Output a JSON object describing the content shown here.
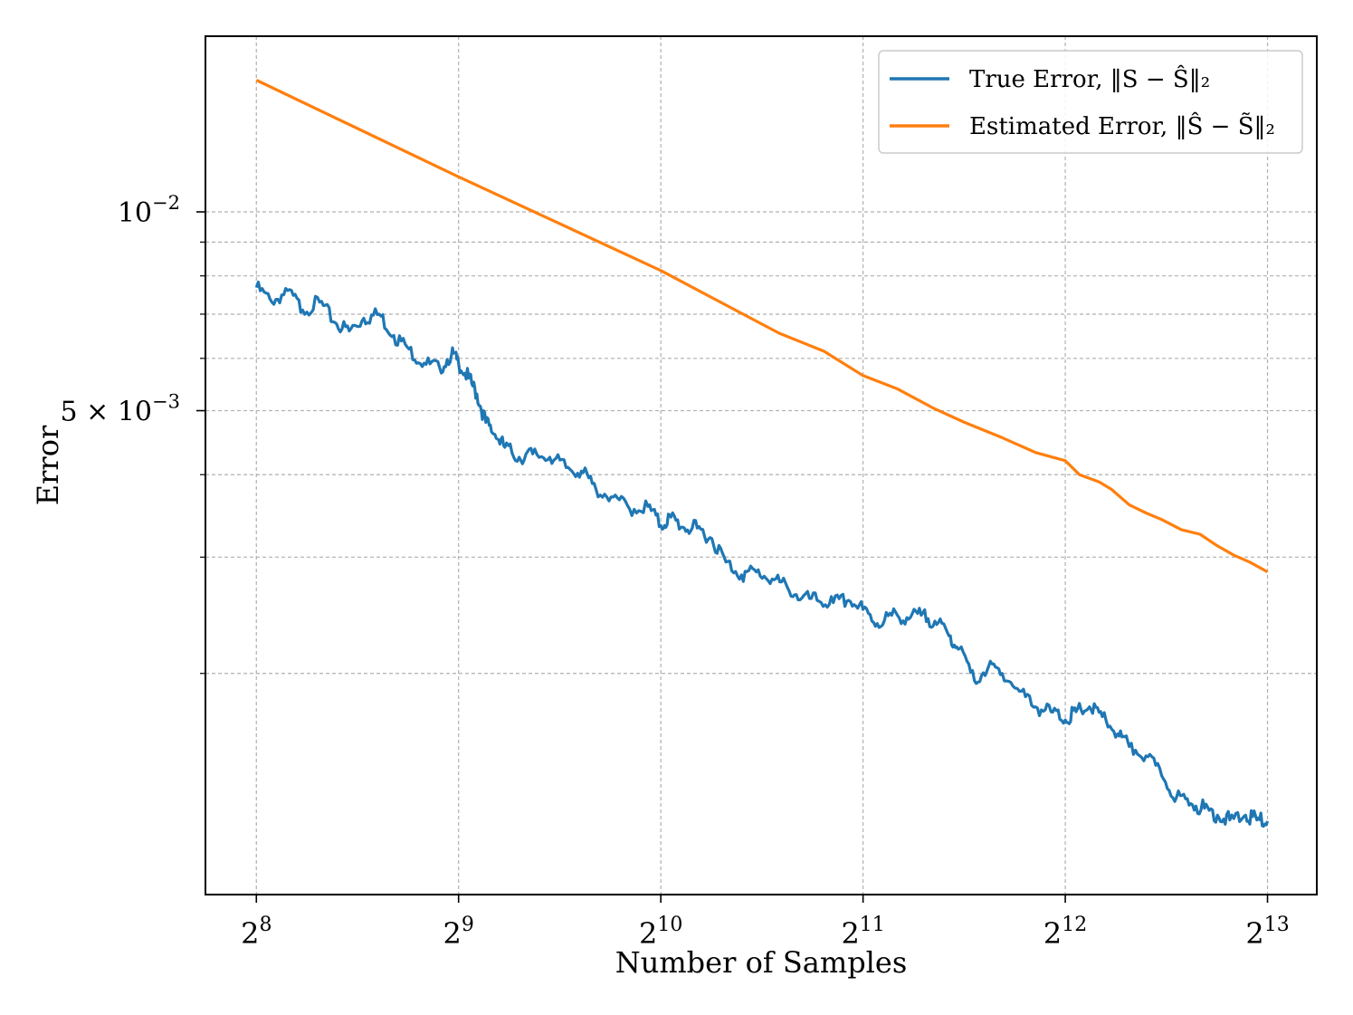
{
  "chart_data": {
    "type": "line",
    "title": "",
    "xlabel": "Number of Samples",
    "ylabel": "Error",
    "xscale": "log2",
    "yscale": "log10",
    "xlim": [
      215,
      9700
    ],
    "ylim": [
      0.000925,
      0.01845
    ],
    "grid": true,
    "x_ticks": [
      {
        "value": 256,
        "base": "2",
        "exp": "8"
      },
      {
        "value": 512,
        "base": "2",
        "exp": "9"
      },
      {
        "value": 1024,
        "base": "2",
        "exp": "10"
      },
      {
        "value": 2048,
        "base": "2",
        "exp": "11"
      },
      {
        "value": 4096,
        "base": "2",
        "exp": "12"
      },
      {
        "value": 8192,
        "base": "2",
        "exp": "13"
      }
    ],
    "y_major_ticks": [
      {
        "value": 0.01,
        "label": "10",
        "exp": "−2"
      },
      {
        "value": 0.005,
        "label": "5 × 10",
        "exp": "−3"
      }
    ],
    "y_minor_ticks": [
      0.002,
      0.003,
      0.004,
      0.006,
      0.007,
      0.008,
      0.009
    ],
    "legend": {
      "location": "top-right",
      "entries": [
        {
          "series": 0,
          "text": "True Error, ‖S − Ŝ‖₂"
        },
        {
          "series": 1,
          "text": "Estimated Error, ‖Ŝ − S̃‖₂"
        }
      ]
    },
    "series": [
      {
        "name": "True Error, ‖S − Ŝ‖₂",
        "color": "#1f77b4",
        "x": [
          256,
          270,
          285,
          300,
          318,
          335,
          352,
          370,
          390,
          410,
          432,
          455,
          480,
          500,
          512,
          530,
          545,
          562,
          580,
          600,
          630,
          660,
          700,
          740,
          780,
          820,
          870,
          920,
          980,
          1024,
          1060,
          1110,
          1160,
          1220,
          1280,
          1350,
          1420,
          1500,
          1580,
          1660,
          1750,
          1850,
          1950,
          2048,
          2150,
          2260,
          2380,
          2500,
          2620,
          2750,
          2850,
          3000,
          3150,
          3300,
          3500,
          3700,
          3900,
          4096,
          4250,
          4450,
          4650,
          4900,
          5100,
          5400,
          5700,
          6000,
          6300,
          6600,
          6900,
          7200,
          7600,
          7900,
          8192
        ],
        "values": [
          0.00768,
          0.0073,
          0.0076,
          0.0071,
          0.0073,
          0.0068,
          0.0066,
          0.0069,
          0.007,
          0.0065,
          0.0062,
          0.0059,
          0.0058,
          0.0061,
          0.0059,
          0.0056,
          0.0053,
          0.0048,
          0.0046,
          0.0044,
          0.00425,
          0.0043,
          0.00425,
          0.0041,
          0.00405,
          0.0038,
          0.0037,
          0.00355,
          0.00358,
          0.00335,
          0.00345,
          0.00332,
          0.00332,
          0.0032,
          0.00295,
          0.00282,
          0.00285,
          0.00278,
          0.0027,
          0.0026,
          0.00258,
          0.00256,
          0.00258,
          0.0025,
          0.00238,
          0.00245,
          0.00243,
          0.00245,
          0.0024,
          0.00228,
          0.00218,
          0.00195,
          0.00205,
          0.002,
          0.00188,
          0.00178,
          0.00175,
          0.0017,
          0.00175,
          0.00178,
          0.00172,
          0.00162,
          0.00155,
          0.0015,
          0.0014,
          0.0013,
          0.00127,
          0.00125,
          0.00122,
          0.0012,
          0.00122,
          0.0012,
          0.001195
        ]
      },
      {
        "name": "Estimated Error, ‖Ŝ − S̃‖₂",
        "color": "#ff7f0e",
        "x": [
          256,
          512,
          1024,
          1536,
          1792,
          2048,
          2300,
          2600,
          2900,
          3300,
          3700,
          4096,
          4300,
          4600,
          4800,
          5100,
          5400,
          5700,
          6100,
          6500,
          6900,
          7300,
          7700,
          8192
        ],
        "values": [
          0.01583,
          0.0113,
          0.00815,
          0.00655,
          0.00615,
          0.00565,
          0.0054,
          0.00505,
          0.0048,
          0.00455,
          0.00432,
          0.0042,
          0.004,
          0.0039,
          0.0038,
          0.0036,
          0.0035,
          0.00342,
          0.0033,
          0.00325,
          0.00312,
          0.00302,
          0.00295,
          0.00285
        ]
      }
    ]
  }
}
